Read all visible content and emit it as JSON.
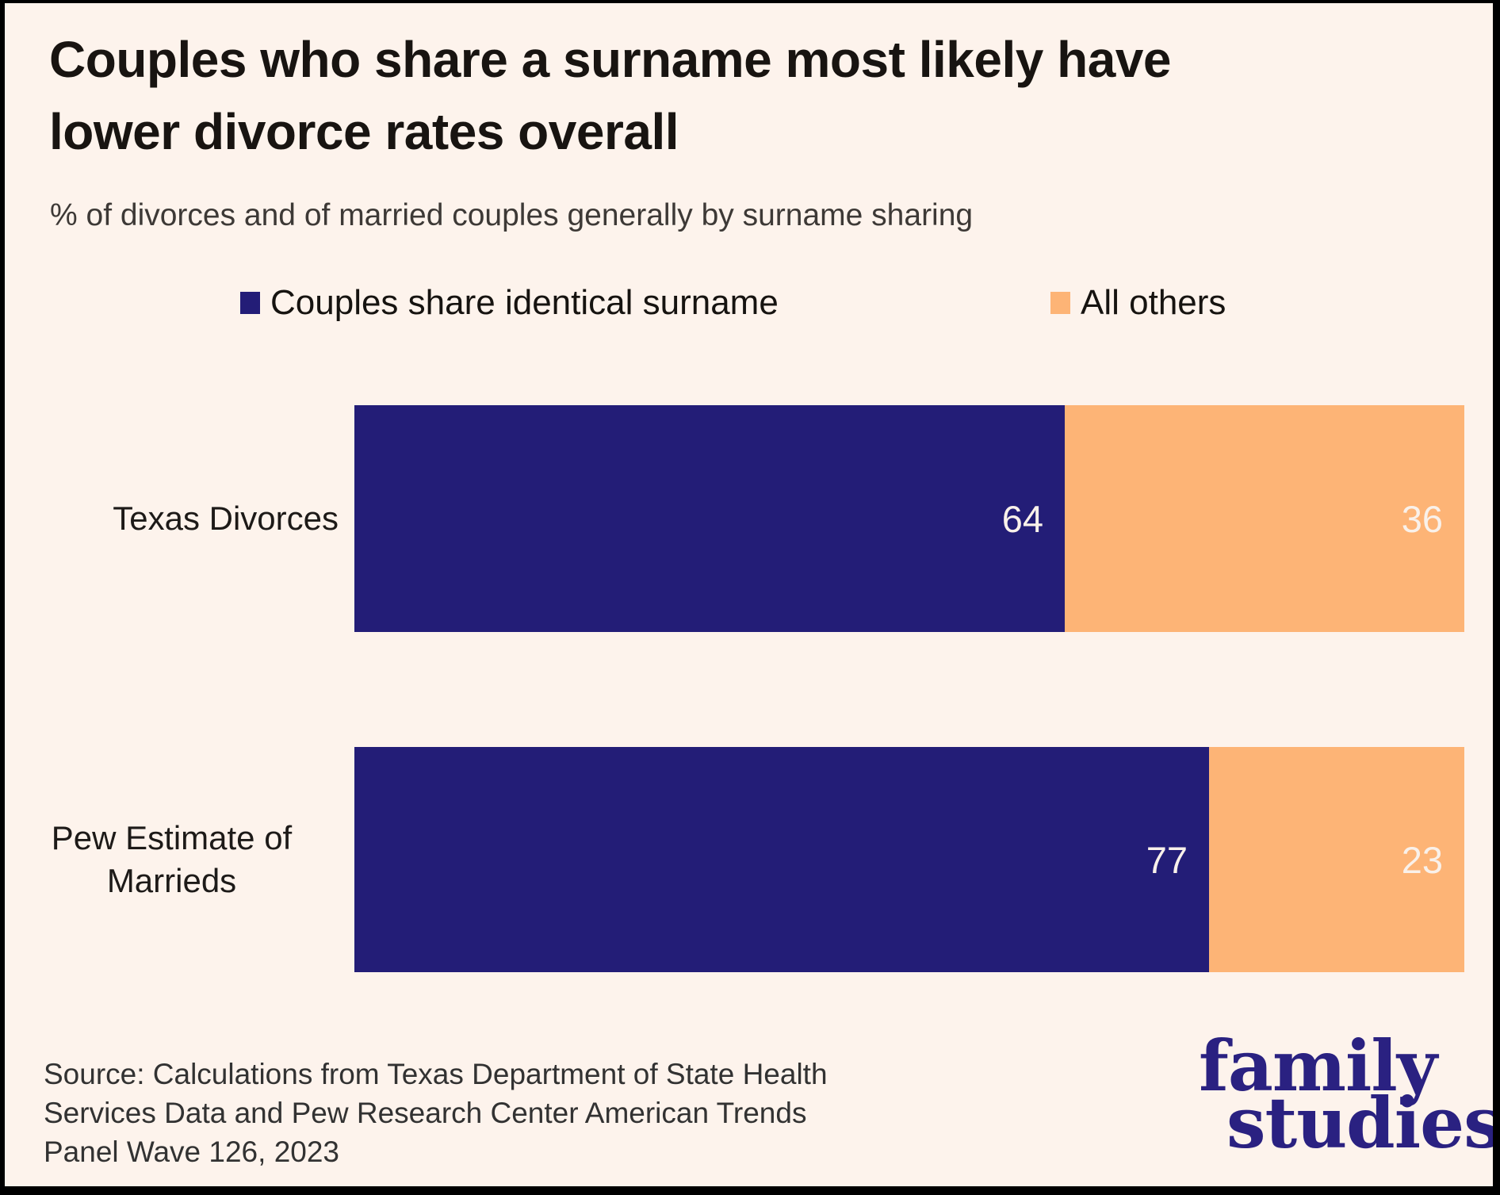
{
  "page": {
    "background": "#fdf3ec",
    "border_color": "#000000",
    "title_lines": [
      "Couples who share a surname most likely have",
      "lower divorce rates overall"
    ],
    "subtitle": "% of divorces and of married couples generally by surname sharing",
    "source_lines": [
      "Source: Calculations from Texas Department of State Health",
      "Services Data and  Pew Research Center American Trends",
      "Panel Wave 126, 2023"
    ],
    "logo": {
      "line1": "family",
      "line2": "studies",
      "color": "#2a2181"
    }
  },
  "chart_data": {
    "type": "bar",
    "variant": "horizontal-stacked",
    "title": "Couples who share a surname most likely have lower divorce rates overall",
    "subtitle": "% of divorces and of married couples generally by surname sharing",
    "categories": [
      "Texas Divorces",
      "Pew Estimate of Marrieds"
    ],
    "series": [
      {
        "name": "Couples share identical surname",
        "color": "#231d77",
        "values": [
          64,
          77
        ]
      },
      {
        "name": "All others",
        "color": "#fdb476",
        "values": [
          36,
          23
        ]
      }
    ],
    "value_range": [
      0,
      100
    ],
    "grid": false,
    "legend_position": "top",
    "value_labels": "inside-end",
    "value_label_color": "#f9f1ea"
  }
}
